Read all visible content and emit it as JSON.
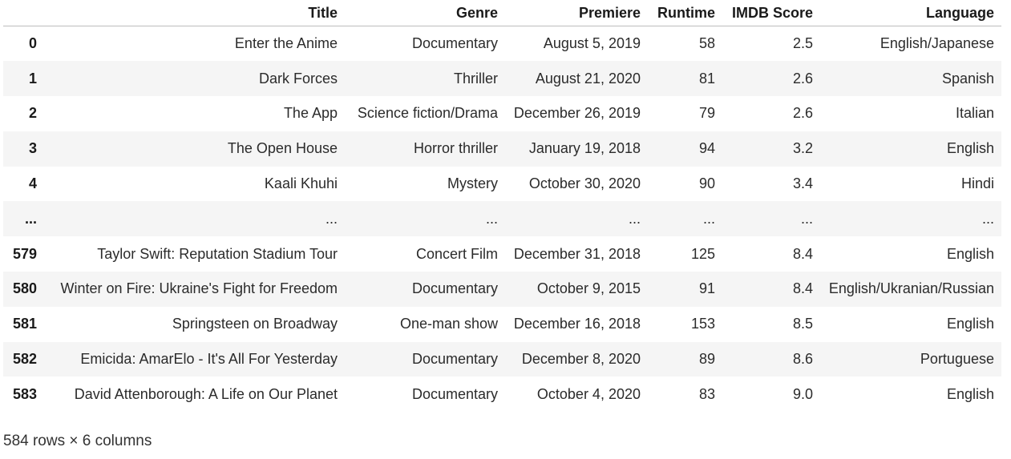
{
  "table": {
    "columns": [
      "Title",
      "Genre",
      "Premiere",
      "Runtime",
      "IMDB Score",
      "Language"
    ],
    "rows": [
      {
        "index": "0",
        "cells": [
          "Enter the Anime",
          "Documentary",
          "August 5, 2019",
          "58",
          "2.5",
          "English/Japanese"
        ]
      },
      {
        "index": "1",
        "cells": [
          "Dark Forces",
          "Thriller",
          "August 21, 2020",
          "81",
          "2.6",
          "Spanish"
        ]
      },
      {
        "index": "2",
        "cells": [
          "The App",
          "Science fiction/Drama",
          "December 26, 2019",
          "79",
          "2.6",
          "Italian"
        ]
      },
      {
        "index": "3",
        "cells": [
          "The Open House",
          "Horror thriller",
          "January 19, 2018",
          "94",
          "3.2",
          "English"
        ]
      },
      {
        "index": "4",
        "cells": [
          "Kaali Khuhi",
          "Mystery",
          "October 30, 2020",
          "90",
          "3.4",
          "Hindi"
        ]
      },
      {
        "index": "...",
        "cells": [
          "...",
          "...",
          "...",
          "...",
          "...",
          "..."
        ]
      },
      {
        "index": "579",
        "cells": [
          "Taylor Swift: Reputation Stadium Tour",
          "Concert Film",
          "December 31, 2018",
          "125",
          "8.4",
          "English"
        ]
      },
      {
        "index": "580",
        "cells": [
          "Winter on Fire: Ukraine's Fight for Freedom",
          "Documentary",
          "October 9, 2015",
          "91",
          "8.4",
          "English/Ukranian/Russian"
        ]
      },
      {
        "index": "581",
        "cells": [
          "Springsteen on Broadway",
          "One-man show",
          "December 16, 2018",
          "153",
          "8.5",
          "English"
        ]
      },
      {
        "index": "582",
        "cells": [
          "Emicida: AmarElo - It's All For Yesterday",
          "Documentary",
          "December 8, 2020",
          "89",
          "8.6",
          "Portuguese"
        ]
      },
      {
        "index": "583",
        "cells": [
          "David Attenborough: A Life on Our Planet",
          "Documentary",
          "October 4, 2020",
          "83",
          "9.0",
          "English"
        ]
      }
    ]
  },
  "footer": {
    "shape_text": "584 rows × 6 columns"
  }
}
